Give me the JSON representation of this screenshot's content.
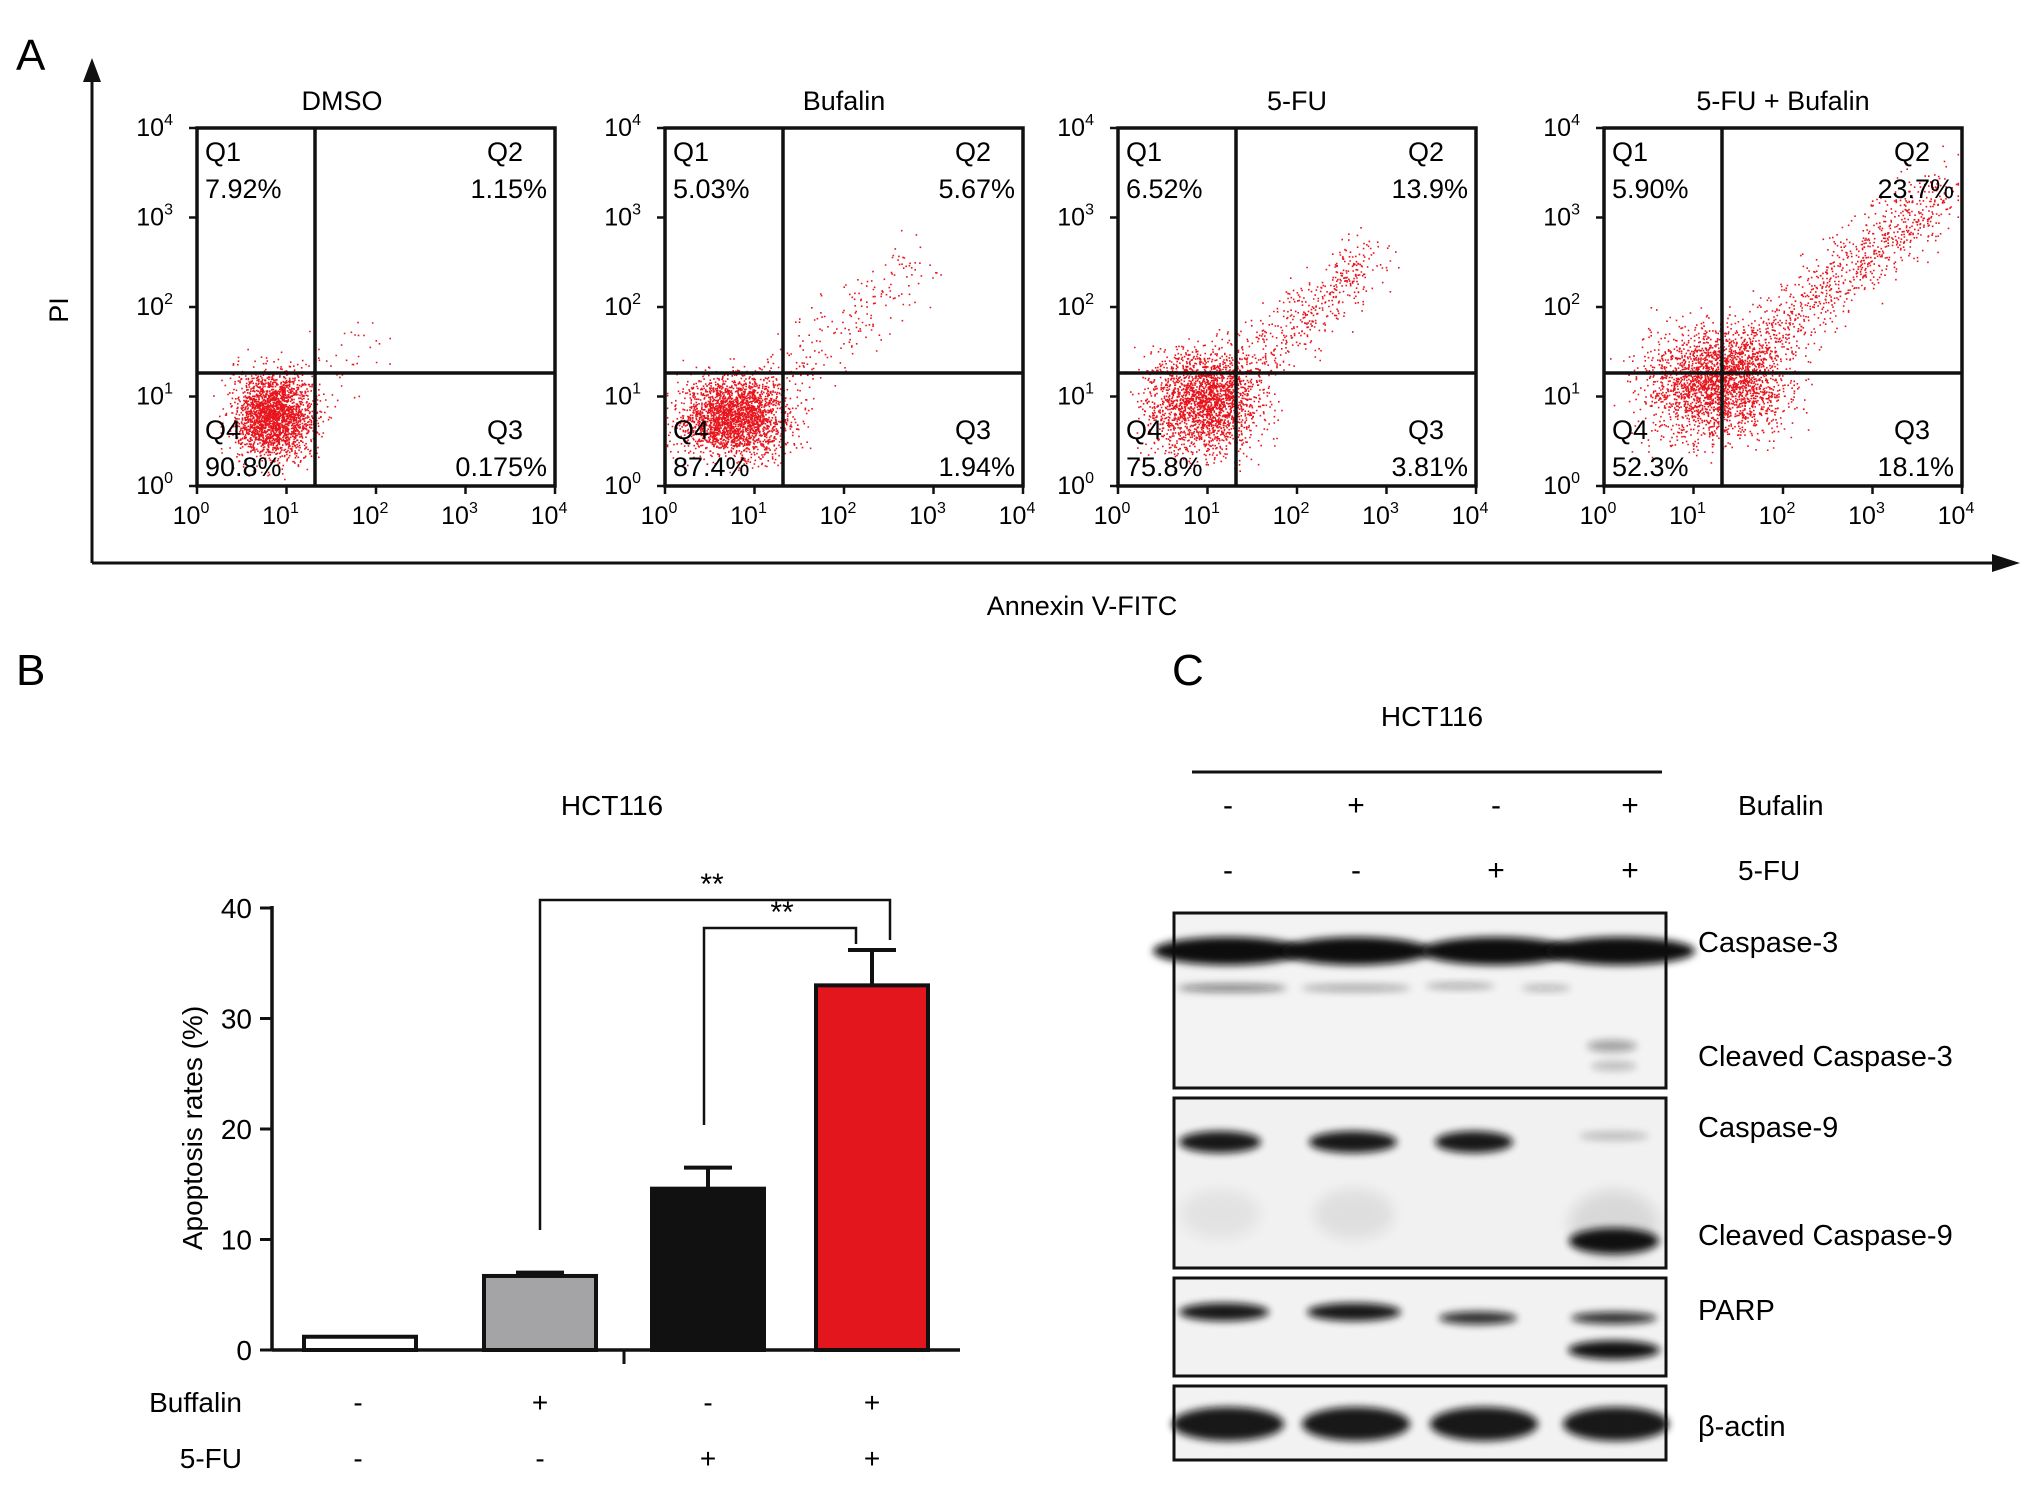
{
  "panel_labels": {
    "a": "A",
    "b": "B",
    "c": "C"
  },
  "panel_a": {
    "x_axis_label": "Annexin V-FITC",
    "y_axis_label": "PI",
    "tick_base": "10",
    "tick_exponents": [
      "0",
      "1",
      "2",
      "3",
      "4"
    ],
    "quadrant_names": [
      "Q1",
      "Q2",
      "Q3",
      "Q4"
    ],
    "plots": [
      {
        "title": "DMSO",
        "q1": "7.92%",
        "q2": "1.15%",
        "q3": "0.175%",
        "q4": "90.8%"
      },
      {
        "title": "Bufalin",
        "q1": "5.03%",
        "q2": "5.67%",
        "q3": "1.94%",
        "q4": "87.4%"
      },
      {
        "title": "5-FU",
        "q1": "6.52%",
        "q2": "13.9%",
        "q3": "3.81%",
        "q4": "75.8%"
      },
      {
        "title": "5-FU + Bufalin",
        "q1": "5.90%",
        "q2": "23.7%",
        "q3": "18.1%",
        "q4": "52.3%"
      }
    ],
    "dot_color": "#e8141c"
  },
  "panel_b": {
    "chart_data": {
      "type": "bar",
      "title": "HCT116",
      "ylabel": "Apoptosis rates (%)",
      "ylim": [
        0,
        40
      ],
      "yticks": [
        "0",
        "10",
        "20",
        "30",
        "40"
      ],
      "values": [
        1.2,
        6.7,
        14.6,
        33.0
      ],
      "errors": [
        0,
        0.3,
        1.9,
        3.2
      ],
      "colors": [
        "#ffffff",
        "#a4a4a6",
        "#111111",
        "#e3161d"
      ],
      "significance": [
        {
          "from": 1,
          "to": 3,
          "label": "**"
        },
        {
          "from": 2,
          "to": 3,
          "label": "**"
        }
      ],
      "treatments": [
        {
          "label": "Buffalin",
          "marks": [
            "-",
            "+",
            "-",
            "+"
          ]
        },
        {
          "label": "5-FU",
          "marks": [
            "-",
            "-",
            "+",
            "+"
          ]
        }
      ]
    }
  },
  "panel_c": {
    "cell_line": "HCT116",
    "treatments": [
      {
        "label": "Bufalin",
        "marks": [
          "-",
          "+",
          "-",
          "+"
        ]
      },
      {
        "label": "5-FU",
        "marks": [
          "-",
          "-",
          "+",
          "+"
        ]
      }
    ],
    "band_labels": [
      "Caspase-3",
      "Cleaved Caspase-3",
      "Caspase-9",
      "Cleaved Caspase-9",
      "PARP",
      "β-actin"
    ]
  }
}
